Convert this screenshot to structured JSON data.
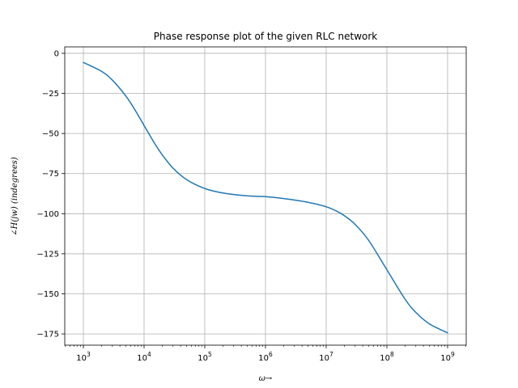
{
  "chart_data": {
    "type": "line",
    "title": "Phase response plot of the given RLC network",
    "xlabel": "ω→",
    "ylabel": "∠H(jw) (indegrees)",
    "xscale": "log",
    "xlim": [
      1000,
      1000000000
    ],
    "ylim": [
      -182,
      4
    ],
    "grid": true,
    "x_ticks": [
      {
        "value": 1000,
        "base": "10",
        "exp": "3"
      },
      {
        "value": 10000,
        "base": "10",
        "exp": "4"
      },
      {
        "value": 100000,
        "base": "10",
        "exp": "5"
      },
      {
        "value": 1000000,
        "base": "10",
        "exp": "6"
      },
      {
        "value": 10000000,
        "base": "10",
        "exp": "7"
      },
      {
        "value": 100000000,
        "base": "10",
        "exp": "8"
      },
      {
        "value": 1000000000,
        "base": "10",
        "exp": "9"
      }
    ],
    "y_ticks": [
      {
        "value": 0,
        "label": "0"
      },
      {
        "value": -25,
        "label": "−25"
      },
      {
        "value": -50,
        "label": "−50"
      },
      {
        "value": -75,
        "label": "−75"
      },
      {
        "value": -100,
        "label": "−100"
      },
      {
        "value": -125,
        "label": "−125"
      },
      {
        "value": -150,
        "label": "−150"
      },
      {
        "value": -175,
        "label": "−175"
      }
    ],
    "series": [
      {
        "color": "#1f77b4",
        "x": [
          1000,
          2000,
          3000,
          5000,
          7000,
          10000,
          15000,
          20000,
          30000,
          50000,
          100000,
          200000,
          500000,
          1000000,
          2000000,
          5000000,
          10000000,
          15000000,
          20000000,
          30000000,
          50000000,
          100000000,
          200000000,
          300000000,
          500000000,
          1000000000
        ],
        "y": [
          -5.7,
          -11.3,
          -16.7,
          -26.6,
          -35.0,
          -45.0,
          -56.3,
          -63.4,
          -71.6,
          -78.7,
          -84.3,
          -87.1,
          -88.9,
          -89.4,
          -90.6,
          -92.9,
          -95.7,
          -98.5,
          -101.3,
          -106.7,
          -116.6,
          -135.0,
          -153.4,
          -161.6,
          -168.7,
          -174.3
        ]
      }
    ]
  }
}
